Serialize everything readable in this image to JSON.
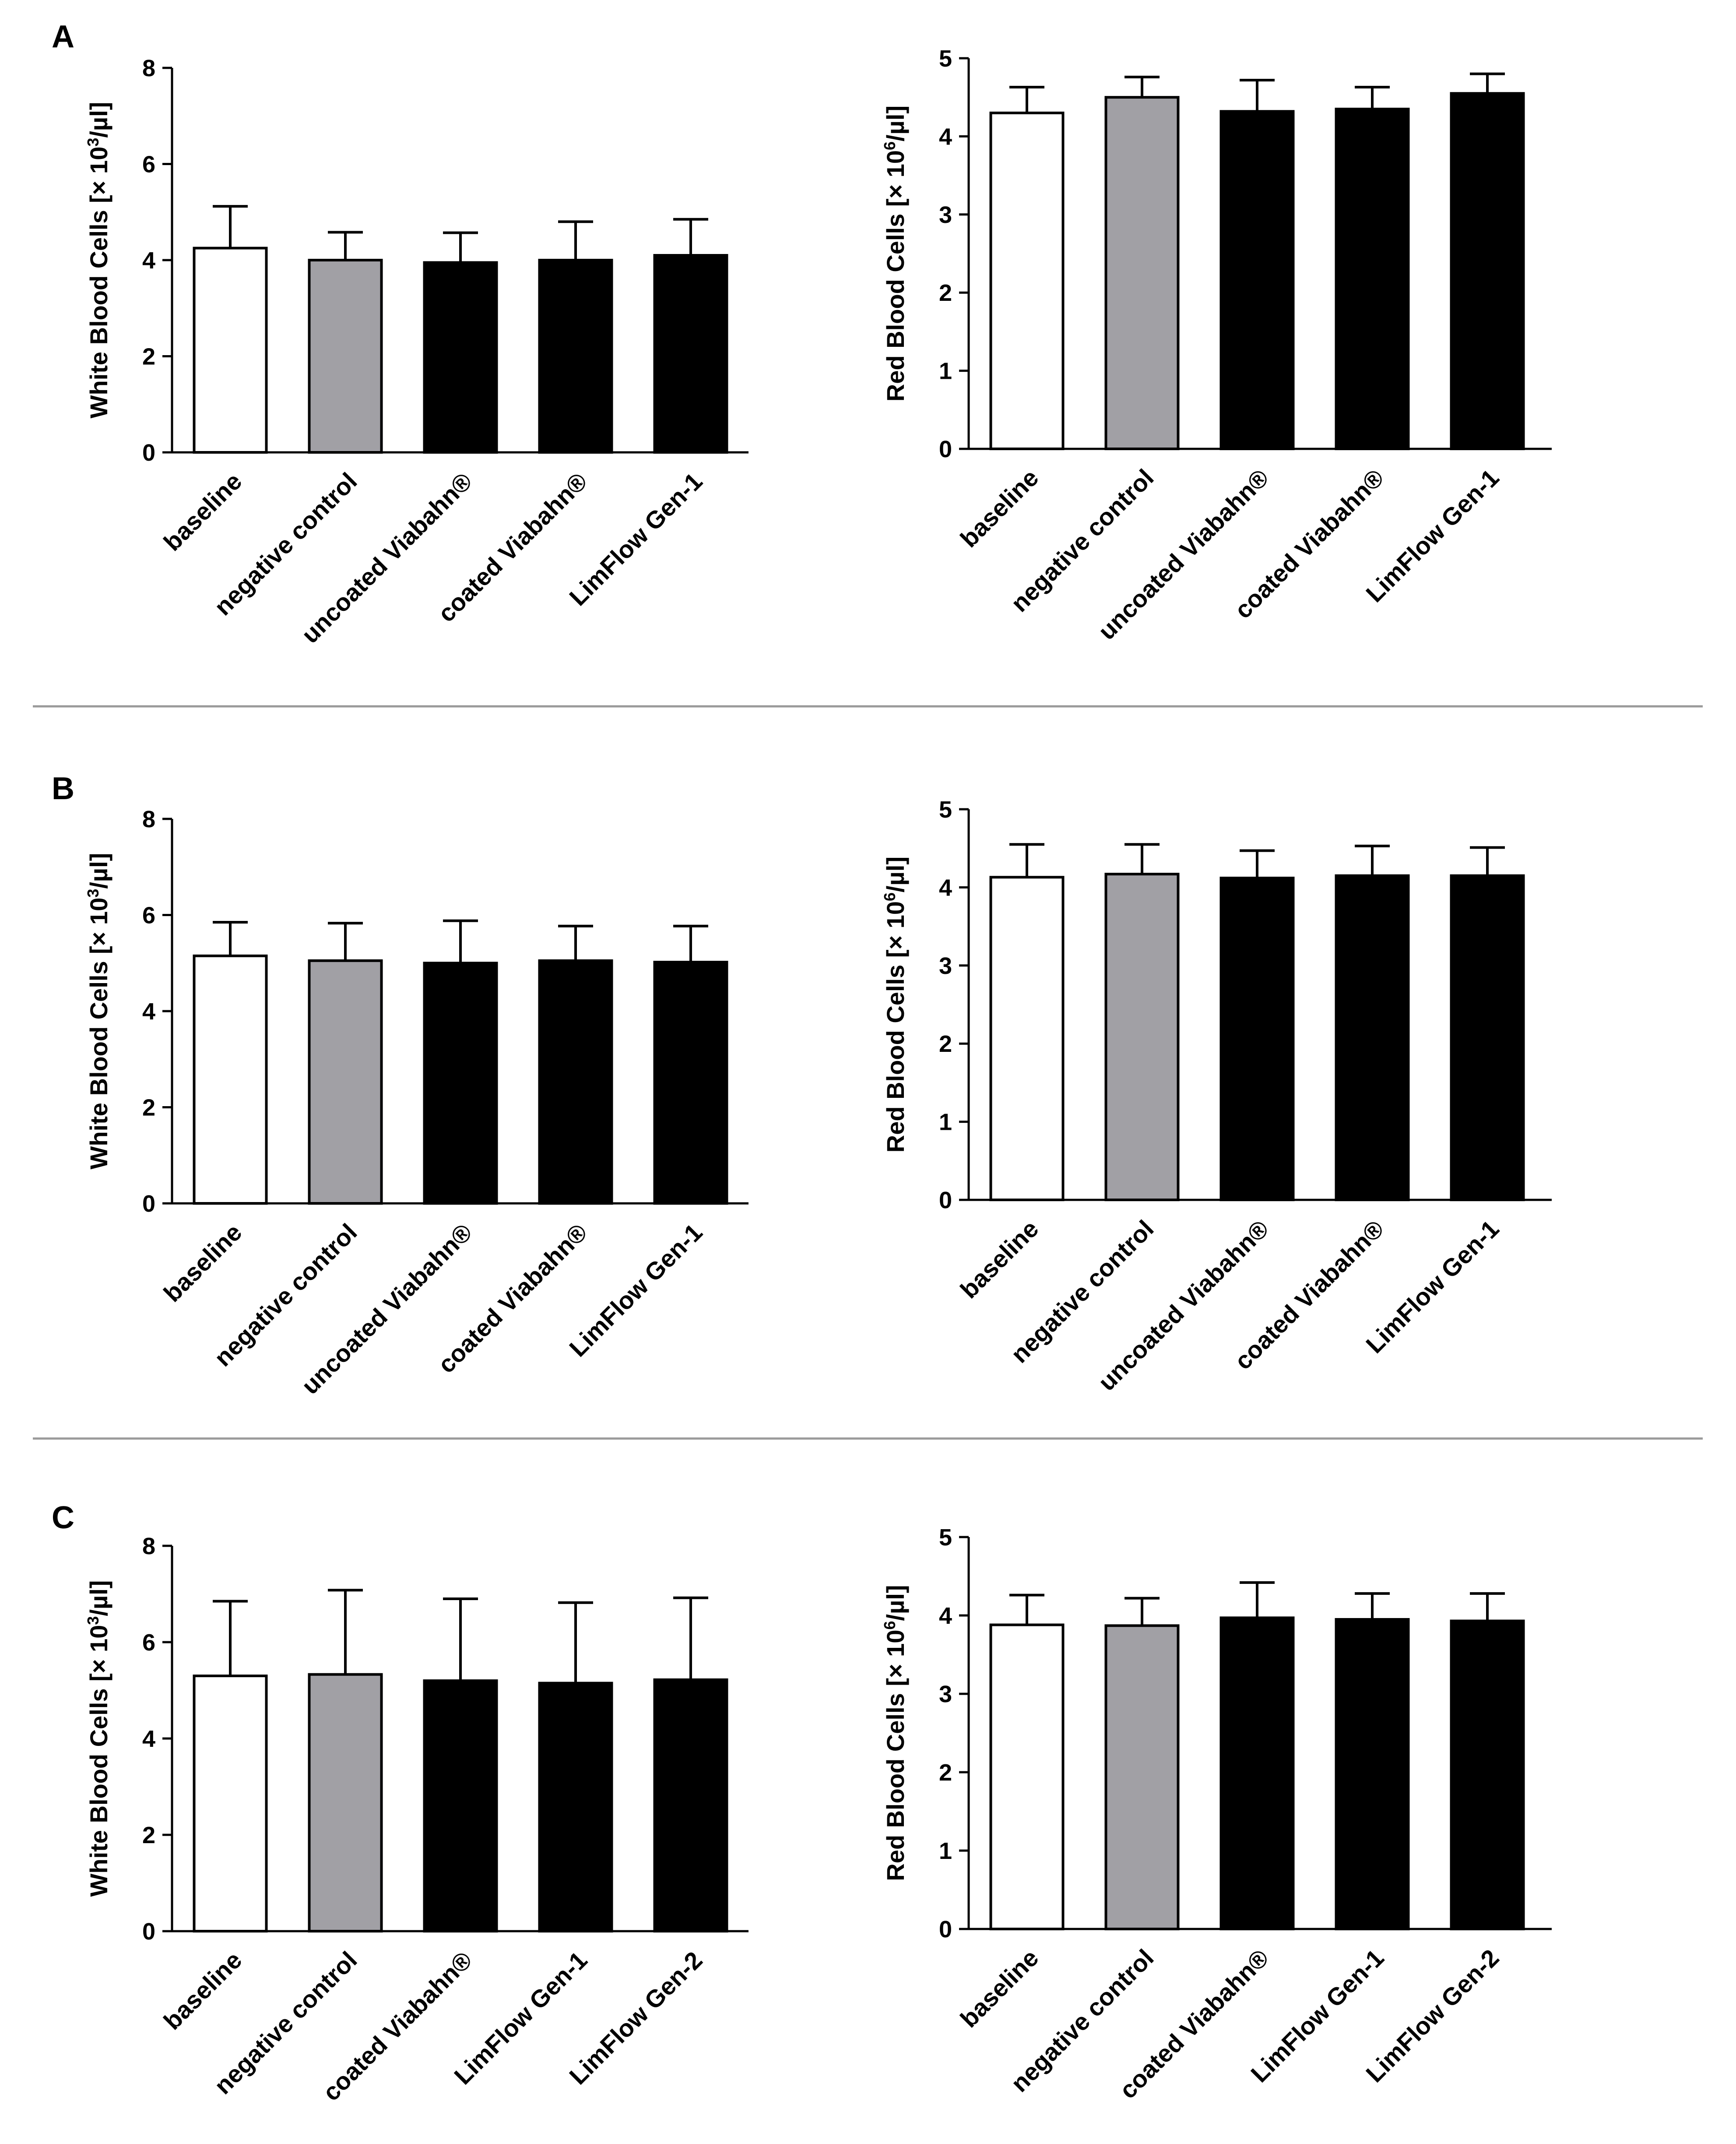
{
  "colors": {
    "baseline": "#ffffff",
    "negative_control": "#a1a0a5",
    "treatment": "#000000",
    "divider": "#9a9a9a"
  },
  "panels": [
    {
      "label": "A"
    },
    {
      "label": "B"
    },
    {
      "label": "C"
    }
  ],
  "chart_data": [
    {
      "panel": "A",
      "type": "bar",
      "title": "",
      "ylabel": "White Blood Cells [× 10³/µl]",
      "ylabel_main": "White Blood Cells [× 10",
      "ylabel_sup": "3",
      "ylabel_tail": "/µl]",
      "ylim": [
        0,
        8
      ],
      "yticks": [
        0,
        2,
        4,
        6,
        8
      ],
      "ytick_labels": [
        "0",
        "2",
        "4",
        "6",
        "8"
      ],
      "categories": [
        "baseline",
        "negative control",
        "uncoated Viabahn®",
        "coated Viabahn®",
        "LimFlow Gen-1"
      ],
      "values": [
        4.25,
        4.0,
        3.95,
        4.0,
        4.1
      ],
      "errors": [
        0.87,
        0.58,
        0.62,
        0.8,
        0.75
      ],
      "fill_keys": [
        "baseline",
        "negative_control",
        "treatment",
        "treatment",
        "treatment"
      ]
    },
    {
      "panel": "A",
      "type": "bar",
      "title": "",
      "ylabel": "Red Blood Cells [× 10⁶/µl]",
      "ylabel_main": "Red Blood Cells [× 10",
      "ylabel_sup": "6",
      "ylabel_tail": "/µl]",
      "ylim": [
        0,
        5
      ],
      "yticks": [
        0,
        1,
        2,
        3,
        4,
        5
      ],
      "ytick_labels": [
        "0",
        "1",
        "2",
        "3",
        "4",
        "5"
      ],
      "categories": [
        "baseline",
        "negative control",
        "uncoated Viabahn®",
        "coated Viabahn®",
        "LimFlow Gen-1"
      ],
      "values": [
        4.3,
        4.5,
        4.32,
        4.35,
        4.55
      ],
      "errors": [
        0.33,
        0.26,
        0.4,
        0.28,
        0.25
      ],
      "fill_keys": [
        "baseline",
        "negative_control",
        "treatment",
        "treatment",
        "treatment"
      ]
    },
    {
      "panel": "B",
      "type": "bar",
      "title": "",
      "ylabel": "White Blood Cells [× 10³/µl]",
      "ylabel_main": "White Blood Cells [× 10",
      "ylabel_sup": "3",
      "ylabel_tail": "/µl]",
      "ylim": [
        0,
        8
      ],
      "yticks": [
        0,
        2,
        4,
        6,
        8
      ],
      "ytick_labels": [
        "0",
        "2",
        "4",
        "6",
        "8"
      ],
      "categories": [
        "baseline",
        "negative control",
        "uncoated Viabahn®",
        "coated Viabahn®",
        "LimFlow Gen-1"
      ],
      "values": [
        5.15,
        5.05,
        5.0,
        5.05,
        5.02
      ],
      "errors": [
        0.7,
        0.78,
        0.88,
        0.72,
        0.75
      ],
      "fill_keys": [
        "baseline",
        "negative_control",
        "treatment",
        "treatment",
        "treatment"
      ]
    },
    {
      "panel": "B",
      "type": "bar",
      "title": "",
      "ylabel": "Red Blood Cells [× 10⁶/µl]",
      "ylabel_main": "Red Blood Cells [× 10",
      "ylabel_sup": "6",
      "ylabel_tail": "/µl]",
      "ylim": [
        0,
        5
      ],
      "yticks": [
        0,
        1,
        2,
        3,
        4,
        5
      ],
      "ytick_labels": [
        "0",
        "1",
        "2",
        "3",
        "4",
        "5"
      ],
      "categories": [
        "baseline",
        "negative control",
        "uncoated Viabahn®",
        "coated Viabahn®",
        "LimFlow Gen-1"
      ],
      "values": [
        4.13,
        4.17,
        4.12,
        4.15,
        4.15
      ],
      "errors": [
        0.42,
        0.38,
        0.35,
        0.38,
        0.36
      ],
      "fill_keys": [
        "baseline",
        "negative_control",
        "treatment",
        "treatment",
        "treatment"
      ]
    },
    {
      "panel": "C",
      "type": "bar",
      "title": "",
      "ylabel": "White Blood Cells [× 10³/µl]",
      "ylabel_main": "White Blood Cells [× 10",
      "ylabel_sup": "3",
      "ylabel_tail": "/µl]",
      "ylim": [
        0,
        8
      ],
      "yticks": [
        0,
        2,
        4,
        6,
        8
      ],
      "ytick_labels": [
        "0",
        "2",
        "4",
        "6",
        "8"
      ],
      "categories": [
        "baseline",
        "negative control",
        "coated Viabahn®",
        "LimFlow Gen-1",
        "LimFlow Gen-2"
      ],
      "values": [
        5.3,
        5.33,
        5.2,
        5.15,
        5.22
      ],
      "errors": [
        1.55,
        1.75,
        1.7,
        1.67,
        1.7
      ],
      "fill_keys": [
        "baseline",
        "negative_control",
        "treatment",
        "treatment",
        "treatment"
      ]
    },
    {
      "panel": "C",
      "type": "bar",
      "title": "",
      "ylabel": "Red Blood Cells [× 10⁶/µl]",
      "ylabel_main": "Red Blood Cells [× 10",
      "ylabel_sup": "6",
      "ylabel_tail": "/µl]",
      "ylim": [
        0,
        5
      ],
      "yticks": [
        0,
        1,
        2,
        3,
        4,
        5
      ],
      "ytick_labels": [
        "0",
        "1",
        "2",
        "3",
        "4",
        "5"
      ],
      "categories": [
        "baseline",
        "negative control",
        "coated Viabahn®",
        "LimFlow Gen-1",
        "LimFlow Gen-2"
      ],
      "values": [
        3.88,
        3.87,
        3.97,
        3.95,
        3.93
      ],
      "errors": [
        0.38,
        0.35,
        0.45,
        0.33,
        0.35
      ],
      "fill_keys": [
        "baseline",
        "negative_control",
        "treatment",
        "treatment",
        "treatment"
      ]
    }
  ]
}
